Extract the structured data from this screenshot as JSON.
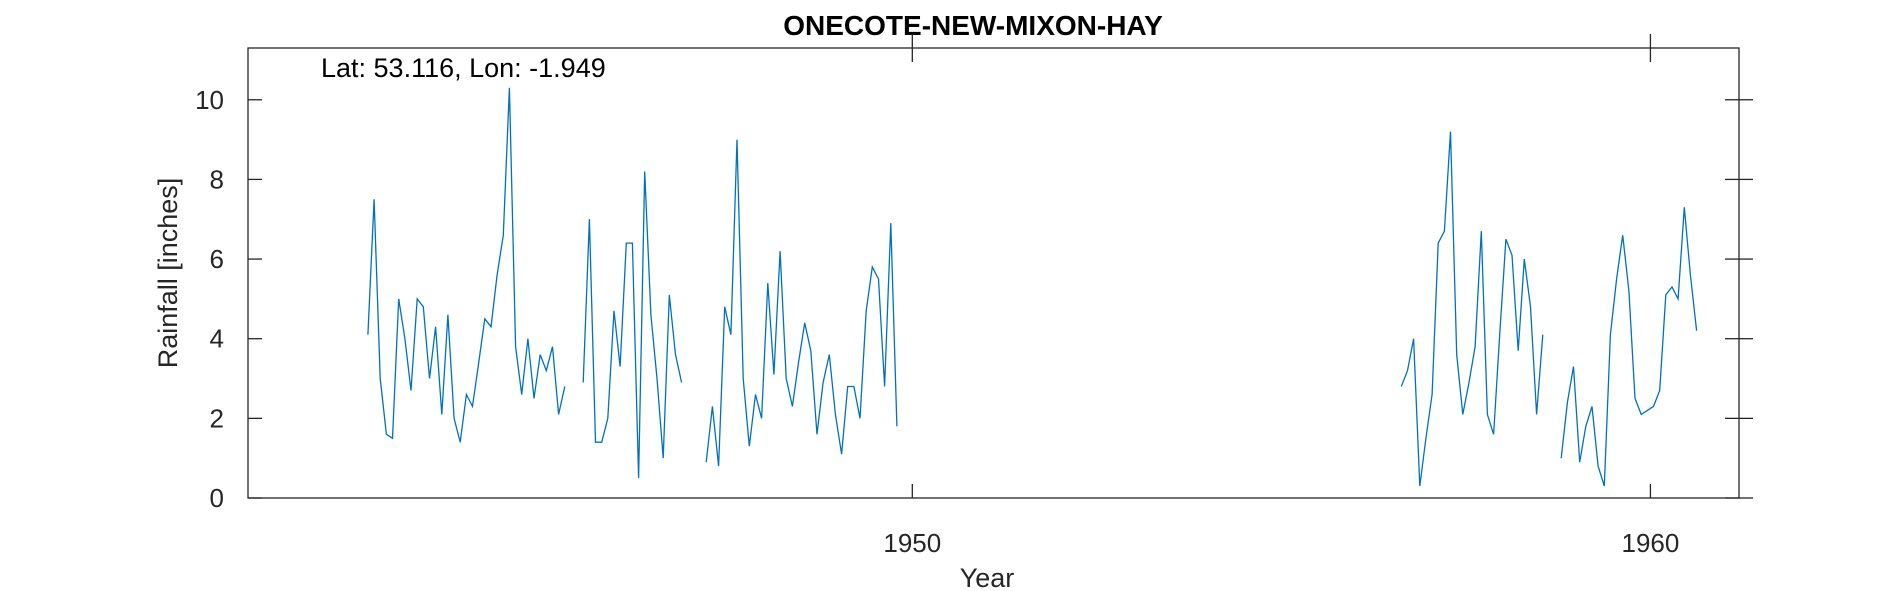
{
  "chart_data": {
    "type": "line",
    "title": "ONECOTE-NEW-MIXON-HAY",
    "xlabel": "Year",
    "ylabel": "Rainfall [inches]",
    "annotation": "Lat: 53.116, Lon: -1.949",
    "xlim": [
      1941.0,
      1961.2
    ],
    "ylim": [
      0,
      11.3
    ],
    "xticks": [
      1950,
      1960
    ],
    "yticks": [
      0,
      2,
      4,
      6,
      8,
      10
    ],
    "grid": false,
    "color": "#0072BD",
    "series": [
      {
        "segments": [
          {
            "start": [
              1942,
              8
            ],
            "values": [
              4.1,
              7.5,
              3.0,
              1.6,
              1.5,
              5.0,
              4.0,
              2.7,
              5.0,
              4.8,
              3.0,
              4.3,
              2.1,
              4.6,
              2.0,
              1.4,
              2.6,
              2.3,
              3.4,
              4.5,
              4.3,
              5.6,
              6.6,
              10.3,
              3.8,
              2.6,
              4.0,
              2.5,
              3.6,
              3.2,
              3.8,
              2.1,
              2.8
            ]
          },
          {
            "start": [
              1945,
              7
            ],
            "values": [
              2.9,
              7.0,
              1.4,
              1.4,
              2.0,
              4.7,
              3.3,
              6.4,
              6.4,
              0.5,
              8.2,
              4.6,
              3.0,
              1.0,
              5.1,
              3.6,
              2.9
            ]
          },
          {
            "start": [
              1947,
              3
            ],
            "values": [
              0.9,
              2.3,
              0.8,
              4.8,
              4.1,
              9.0,
              3.0,
              1.3,
              2.6,
              2.0,
              5.4,
              3.1,
              6.2,
              3.0,
              2.3,
              3.4,
              4.4,
              3.7,
              1.6,
              2.9,
              3.6,
              2.1,
              1.1,
              2.8,
              2.8,
              2.0,
              4.7,
              5.8,
              5.5,
              2.8,
              6.9,
              1.8
            ]
          },
          {
            "start": [
              1956,
              8
            ],
            "values": [
              2.8,
              3.2,
              4.0,
              0.3,
              1.5,
              2.6,
              6.4,
              6.7,
              9.2,
              3.6,
              2.1,
              2.9,
              3.8,
              6.7,
              2.1,
              1.6,
              4.1,
              6.5,
              6.1,
              3.7,
              6.0,
              4.8,
              2.1,
              4.1
            ]
          },
          {
            "start": [
              1958,
              10
            ],
            "values": [
              1.0,
              2.4,
              3.3,
              0.9,
              1.8,
              2.3,
              0.8,
              0.3,
              4.1,
              5.5,
              6.6,
              5.2,
              2.5,
              2.1,
              2.2,
              2.3,
              2.7,
              5.1,
              5.3,
              5.0,
              7.3,
              5.6,
              4.2
            ]
          }
        ]
      }
    ]
  }
}
